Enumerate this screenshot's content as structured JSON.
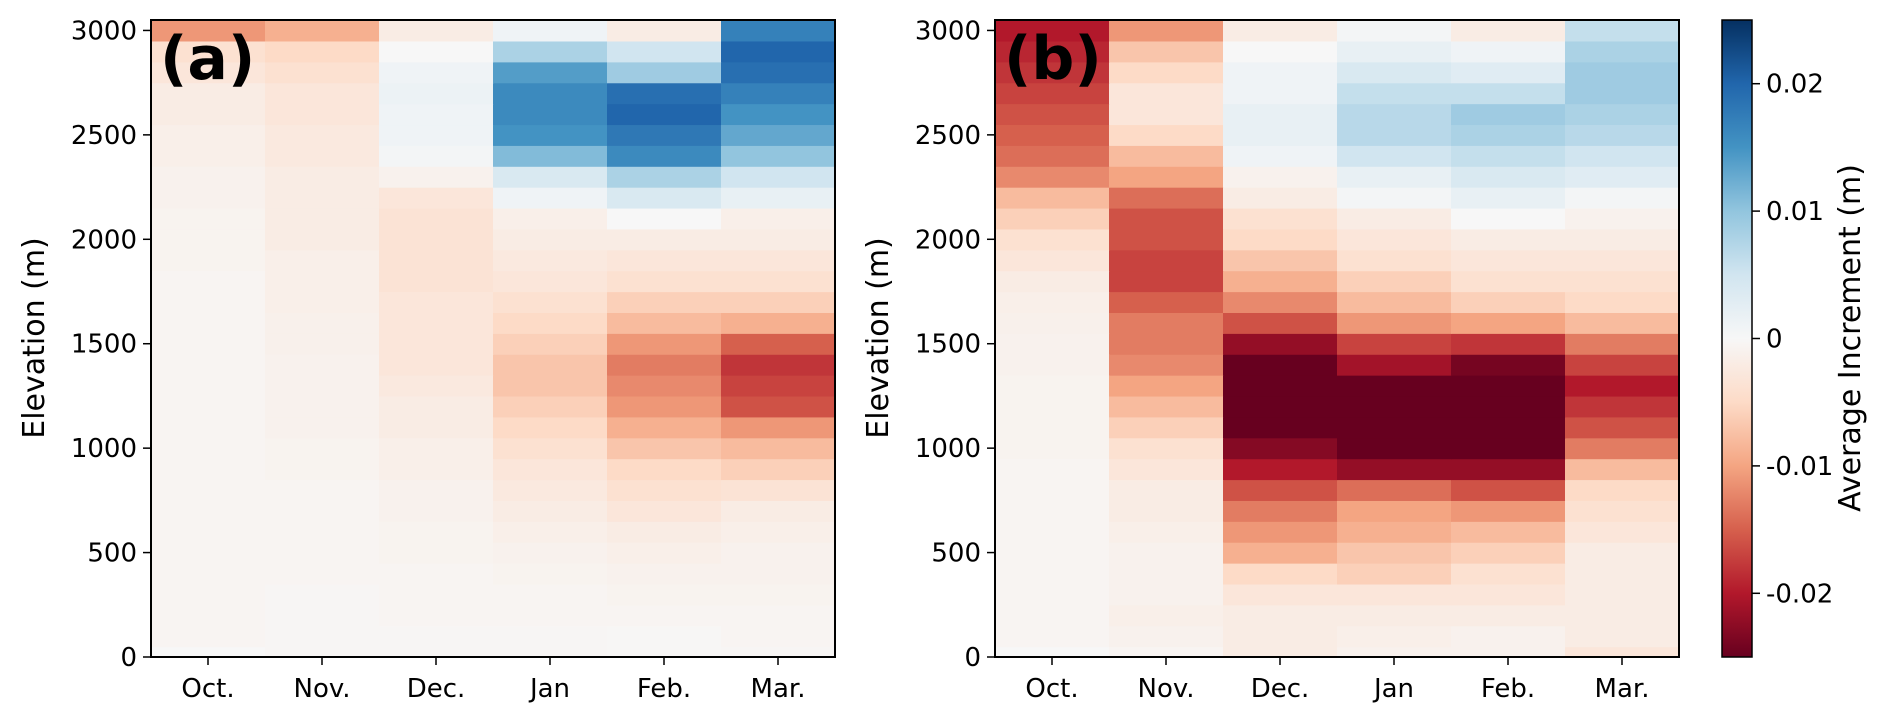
{
  "chart_data": [
    {
      "type": "heatmap",
      "panel_label": "(a)",
      "ylabel": "Elevation (m)",
      "categories": [
        "Oct.",
        "Nov.",
        "Dec.",
        "Jan",
        "Feb.",
        "Mar."
      ],
      "y_ticks": [
        "0",
        "500",
        "1000",
        "1500",
        "2000",
        "2500",
        "3000"
      ],
      "ylim": [
        0,
        3050
      ],
      "band_height_m": 100,
      "elevation_bands_m": [
        0,
        100,
        200,
        300,
        400,
        500,
        600,
        700,
        800,
        900,
        1000,
        1100,
        1200,
        1300,
        1400,
        1500,
        1600,
        1700,
        1800,
        1900,
        2000,
        2100,
        2200,
        2300,
        2400,
        2500,
        2600,
        2700,
        2800,
        2900,
        3000
      ],
      "values": [
        [
          0.0,
          -0.0003,
          -0.0003,
          -0.0003,
          -0.0002,
          -0.0003
        ],
        [
          -0.0005,
          -0.0003,
          -0.0003,
          -0.0003,
          -0.0002,
          -0.0005
        ],
        [
          -0.0005,
          -0.0003,
          -0.0005,
          -0.0005,
          -0.0005,
          -0.0005
        ],
        [
          -0.0005,
          -0.0003,
          -0.0005,
          -0.0005,
          -0.0008,
          -0.0008
        ],
        [
          -0.0005,
          -0.0005,
          -0.0005,
          -0.0008,
          -0.001,
          -0.001
        ],
        [
          -0.0005,
          -0.0005,
          -0.0008,
          -0.001,
          -0.0015,
          -0.001
        ],
        [
          -0.0005,
          -0.0005,
          -0.0008,
          -0.0015,
          -0.002,
          -0.0015
        ],
        [
          -0.0005,
          -0.0005,
          -0.001,
          -0.002,
          -0.003,
          -0.002
        ],
        [
          -0.0005,
          -0.0005,
          -0.001,
          -0.0025,
          -0.004,
          -0.0035
        ],
        [
          -0.0005,
          -0.0008,
          -0.0015,
          -0.003,
          -0.005,
          -0.006
        ],
        [
          -0.0005,
          -0.0008,
          -0.0015,
          -0.004,
          -0.007,
          -0.008
        ],
        [
          -0.0005,
          -0.001,
          -0.002,
          -0.005,
          -0.009,
          -0.011
        ],
        [
          -0.0005,
          -0.001,
          -0.002,
          -0.006,
          -0.011,
          -0.016
        ],
        [
          -0.0005,
          -0.001,
          -0.0025,
          -0.007,
          -0.012,
          -0.017
        ],
        [
          -0.0005,
          -0.001,
          -0.003,
          -0.007,
          -0.013,
          -0.018
        ],
        [
          -0.0005,
          -0.0012,
          -0.003,
          -0.006,
          -0.011,
          -0.015
        ],
        [
          -0.0005,
          -0.0012,
          -0.003,
          -0.005,
          -0.008,
          -0.009
        ],
        [
          -0.0005,
          -0.0015,
          -0.003,
          -0.004,
          -0.006,
          -0.006
        ],
        [
          -0.0005,
          -0.0015,
          -0.0035,
          -0.003,
          -0.004,
          -0.004
        ],
        [
          -0.0008,
          -0.0015,
          -0.0035,
          -0.0025,
          -0.003,
          -0.003
        ],
        [
          -0.0008,
          -0.002,
          -0.0035,
          -0.002,
          -0.002,
          -0.002
        ],
        [
          -0.0008,
          -0.002,
          -0.0035,
          -0.0015,
          0.0,
          -0.0015
        ],
        [
          -0.001,
          -0.002,
          -0.003,
          0.001,
          0.004,
          0.002
        ],
        [
          -0.001,
          -0.002,
          -0.001,
          0.004,
          0.008,
          0.005
        ],
        [
          -0.0015,
          -0.0025,
          0.0005,
          0.011,
          0.016,
          0.01
        ],
        [
          -0.0015,
          -0.0025,
          0.001,
          0.015,
          0.018,
          0.013
        ],
        [
          -0.002,
          -0.003,
          0.001,
          0.016,
          0.02,
          0.015
        ],
        [
          -0.002,
          -0.003,
          0.0015,
          0.016,
          0.019,
          0.017
        ],
        [
          -0.003,
          -0.004,
          0.001,
          0.014,
          0.009,
          0.019
        ],
        [
          -0.004,
          -0.005,
          0.0,
          0.008,
          0.005,
          0.02
        ],
        [
          -0.011,
          -0.009,
          -0.002,
          0.001,
          -0.002,
          0.017
        ]
      ]
    },
    {
      "type": "heatmap",
      "panel_label": "(b)",
      "ylabel": "Elevation (m)",
      "categories": [
        "Oct.",
        "Nov.",
        "Dec.",
        "Jan",
        "Feb.",
        "Mar."
      ],
      "y_ticks": [
        "0",
        "500",
        "1000",
        "1500",
        "2000",
        "2500",
        "3000"
      ],
      "ylim": [
        0,
        3050
      ],
      "band_height_m": 100,
      "elevation_bands_m": [
        0,
        100,
        200,
        300,
        400,
        500,
        600,
        700,
        800,
        900,
        1000,
        1100,
        1200,
        1300,
        1400,
        1500,
        1600,
        1700,
        1800,
        1900,
        2000,
        2100,
        2200,
        2300,
        2400,
        2500,
        2600,
        2700,
        2800,
        2900,
        3000
      ],
      "values": [
        [
          0.0,
          -0.0005,
          -0.002,
          -0.001,
          -0.001,
          -0.003
        ],
        [
          -0.0005,
          -0.001,
          -0.002,
          -0.0015,
          -0.001,
          -0.002
        ],
        [
          -0.0005,
          -0.0015,
          -0.002,
          -0.002,
          -0.002,
          -0.002
        ],
        [
          -0.0005,
          -0.001,
          -0.003,
          -0.003,
          -0.003,
          -0.002
        ],
        [
          -0.0005,
          -0.001,
          -0.005,
          -0.006,
          -0.004,
          -0.002
        ],
        [
          -0.0005,
          -0.001,
          -0.009,
          -0.007,
          -0.006,
          -0.002
        ],
        [
          -0.0005,
          -0.0015,
          -0.011,
          -0.009,
          -0.008,
          -0.003
        ],
        [
          -0.0005,
          -0.002,
          -0.013,
          -0.01,
          -0.011,
          -0.004
        ],
        [
          -0.0005,
          -0.002,
          -0.016,
          -0.014,
          -0.016,
          -0.005
        ],
        [
          -0.0005,
          -0.003,
          -0.02,
          -0.022,
          -0.022,
          -0.008
        ],
        [
          -0.0008,
          -0.004,
          -0.023,
          -0.027,
          -0.025,
          -0.013
        ],
        [
          -0.0008,
          -0.006,
          -0.028,
          -0.028,
          -0.028,
          -0.016
        ],
        [
          -0.0008,
          -0.008,
          -0.028,
          -0.026,
          -0.028,
          -0.018
        ],
        [
          -0.0008,
          -0.01,
          -0.027,
          -0.025,
          -0.027,
          -0.02
        ],
        [
          -0.001,
          -0.012,
          -0.025,
          -0.021,
          -0.024,
          -0.017
        ],
        [
          -0.001,
          -0.013,
          -0.022,
          -0.017,
          -0.018,
          -0.013
        ],
        [
          -0.0012,
          -0.013,
          -0.016,
          -0.011,
          -0.01,
          -0.008
        ],
        [
          -0.0015,
          -0.015,
          -0.012,
          -0.008,
          -0.006,
          -0.005
        ],
        [
          -0.002,
          -0.017,
          -0.009,
          -0.006,
          -0.004,
          -0.004
        ],
        [
          -0.003,
          -0.017,
          -0.007,
          -0.004,
          -0.003,
          -0.003
        ],
        [
          -0.004,
          -0.016,
          -0.005,
          -0.003,
          -0.002,
          -0.002
        ],
        [
          -0.006,
          -0.016,
          -0.004,
          -0.002,
          0.0,
          -0.001
        ],
        [
          -0.008,
          -0.014,
          -0.002,
          0.0005,
          0.002,
          0.0005
        ],
        [
          -0.012,
          -0.01,
          -0.001,
          0.002,
          0.004,
          0.003
        ],
        [
          -0.014,
          -0.008,
          0.001,
          0.005,
          0.006,
          0.005
        ],
        [
          -0.015,
          -0.005,
          0.002,
          0.007,
          0.008,
          0.007
        ],
        [
          -0.016,
          -0.003,
          0.002,
          0.007,
          0.009,
          0.008
        ],
        [
          -0.017,
          -0.003,
          0.001,
          0.006,
          0.006,
          0.009
        ],
        [
          -0.018,
          -0.005,
          0.001,
          0.004,
          0.003,
          0.009
        ],
        [
          -0.019,
          -0.007,
          0.0,
          0.002,
          0.001,
          0.008
        ],
        [
          -0.02,
          -0.011,
          -0.002,
          0.0005,
          -0.002,
          0.006
        ]
      ]
    }
  ],
  "colorbar": {
    "label": "Average Increment (m)",
    "range": [
      -0.025,
      0.025
    ],
    "colormap": "RdBu",
    "ticks": [
      {
        "value": 0.02,
        "label": "0.02"
      },
      {
        "value": 0.01,
        "label": "0.01"
      },
      {
        "value": 0,
        "label": "0"
      },
      {
        "value": -0.01,
        "label": "-0.01"
      },
      {
        "value": -0.02,
        "label": "-0.02"
      }
    ],
    "stops": [
      "#67001f",
      "#b2182b",
      "#d6604d",
      "#f4a582",
      "#fddbc7",
      "#f7f7f7",
      "#d1e5f0",
      "#92c5de",
      "#4393c3",
      "#2166ac",
      "#053061"
    ]
  }
}
